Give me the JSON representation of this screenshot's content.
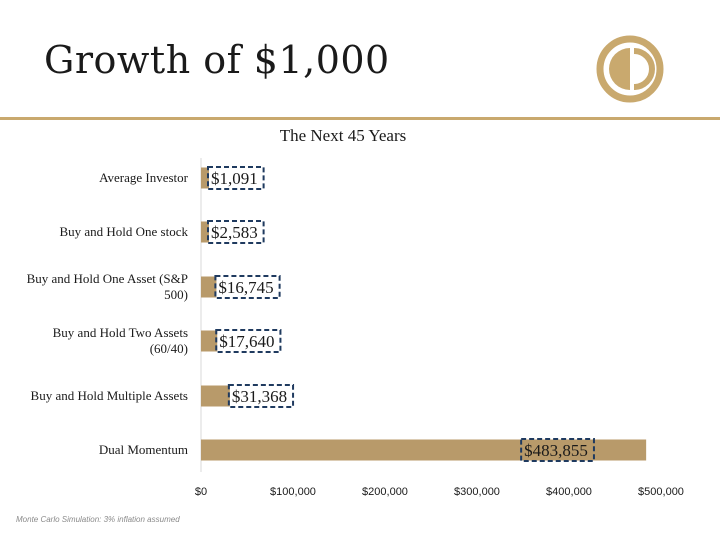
{
  "slide": {
    "title": "Growth of $1,000",
    "footnote": "Monte Carlo Simulation: 3% inflation assumed"
  },
  "colors": {
    "bar": "#b89a6a",
    "accent": "#c9a96e",
    "box_border": "#1f3a5f"
  },
  "icons": {
    "logo": "gold-circle-logo"
  },
  "chart_data": {
    "type": "bar",
    "orientation": "horizontal",
    "title": "The Next 45 Years",
    "categories": [
      [
        "Average Investor"
      ],
      [
        "Buy and Hold One stock"
      ],
      [
        "Buy and Hold One Asset (S&P",
        "500)"
      ],
      [
        "Buy and Hold Two Assets",
        "(60/40)"
      ],
      [
        "Buy and Hold Multiple Assets"
      ],
      [
        "Dual Momentum"
      ]
    ],
    "values": [
      1091,
      2583,
      16745,
      17640,
      31368,
      483855
    ],
    "value_labels": [
      "$1,091",
      "$2,583",
      "$16,745",
      "$17,640",
      "$31,368",
      "$483,855"
    ],
    "xlim": [
      0,
      500000
    ],
    "xticks": [
      0,
      100000,
      200000,
      300000,
      400000,
      500000
    ],
    "xtick_labels": [
      "$0",
      "$100,000",
      "$200,000",
      "$300,000",
      "$400,000",
      "$500,000"
    ],
    "xlabel": "",
    "ylabel": "",
    "grid": false,
    "legend": "none"
  }
}
